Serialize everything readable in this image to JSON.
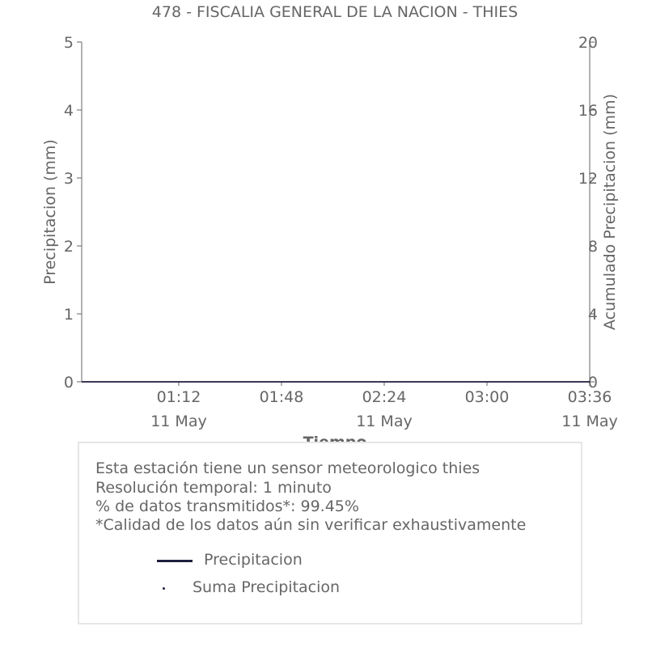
{
  "chart_data": {
    "type": "line",
    "title": "478 - FISCALIA GENERAL DE LA NACION - THIES",
    "xlabel": "Tiempo",
    "ylabel_left": "Precipitacion (mm)",
    "ylabel_right": "Acumulado Precipitacion (mm)",
    "ylim_left": [
      0,
      5
    ],
    "ylim_right": [
      0,
      20
    ],
    "yticks_left": [
      "0",
      "1",
      "2",
      "3",
      "4",
      "5"
    ],
    "yticks_right": [
      "0",
      "4",
      "8",
      "12",
      "16",
      "20"
    ],
    "xlim_minutes": [
      "00:38",
      "03:36"
    ],
    "xticks": [
      {
        "time": "01:12",
        "date": "11 May"
      },
      {
        "time": "01:48",
        "date": ""
      },
      {
        "time": "02:24",
        "date": "11 May"
      },
      {
        "time": "03:00",
        "date": ""
      },
      {
        "time": "03:36",
        "date": "11 May"
      }
    ],
    "series": [
      {
        "name": "Precipitacion",
        "axis": "left",
        "color": "#1f1f3f",
        "x": [
          "00:38",
          "03:36"
        ],
        "values": [
          0,
          0
        ]
      },
      {
        "name": "Suma Precipitacion",
        "axis": "right",
        "color": "#1f1f3f",
        "x": [
          "00:38",
          "03:36"
        ],
        "values": [
          0,
          0
        ]
      }
    ],
    "grid": false
  },
  "info": {
    "line1": "Esta estación tiene un sensor meteorologico thies",
    "line2": "Resolución temporal: 1 minuto",
    "line3": "% de datos transmitidos*: 99.45%",
    "line4": "*Calidad de los datos aún sin verificar exhaustivamente"
  },
  "legend": {
    "item1": "Precipitacion",
    "item2": "Suma Precipitacion"
  }
}
